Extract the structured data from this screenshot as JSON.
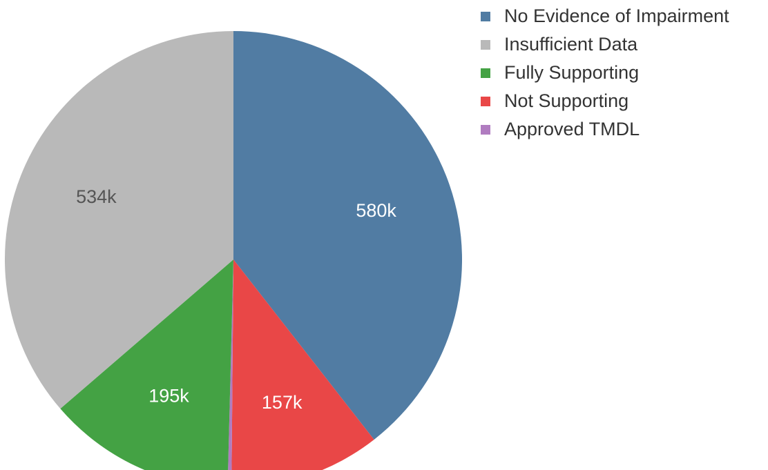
{
  "chart_data": {
    "type": "pie",
    "categories": [
      "No Evidence of Impairment",
      "Insufficient Data",
      "Fully Supporting",
      "Not Supporting",
      "Approved TMDL"
    ],
    "values": [
      580000,
      534000,
      195000,
      157000,
      4000
    ],
    "value_labels": [
      "580k",
      "534k",
      "195k",
      "157k",
      ""
    ],
    "colors": [
      "#517ca3",
      "#b9b9b9",
      "#44a244",
      "#e94747",
      "#b07cc0"
    ],
    "label_colors": [
      "#ffffff",
      "#555555",
      "#ffffff",
      "#ffffff",
      "#ffffff"
    ],
    "slice_order": [
      0,
      3,
      4,
      2,
      1
    ],
    "start_angle_deg": 0,
    "direction": "clockwise",
    "legend_position": "top-right"
  }
}
